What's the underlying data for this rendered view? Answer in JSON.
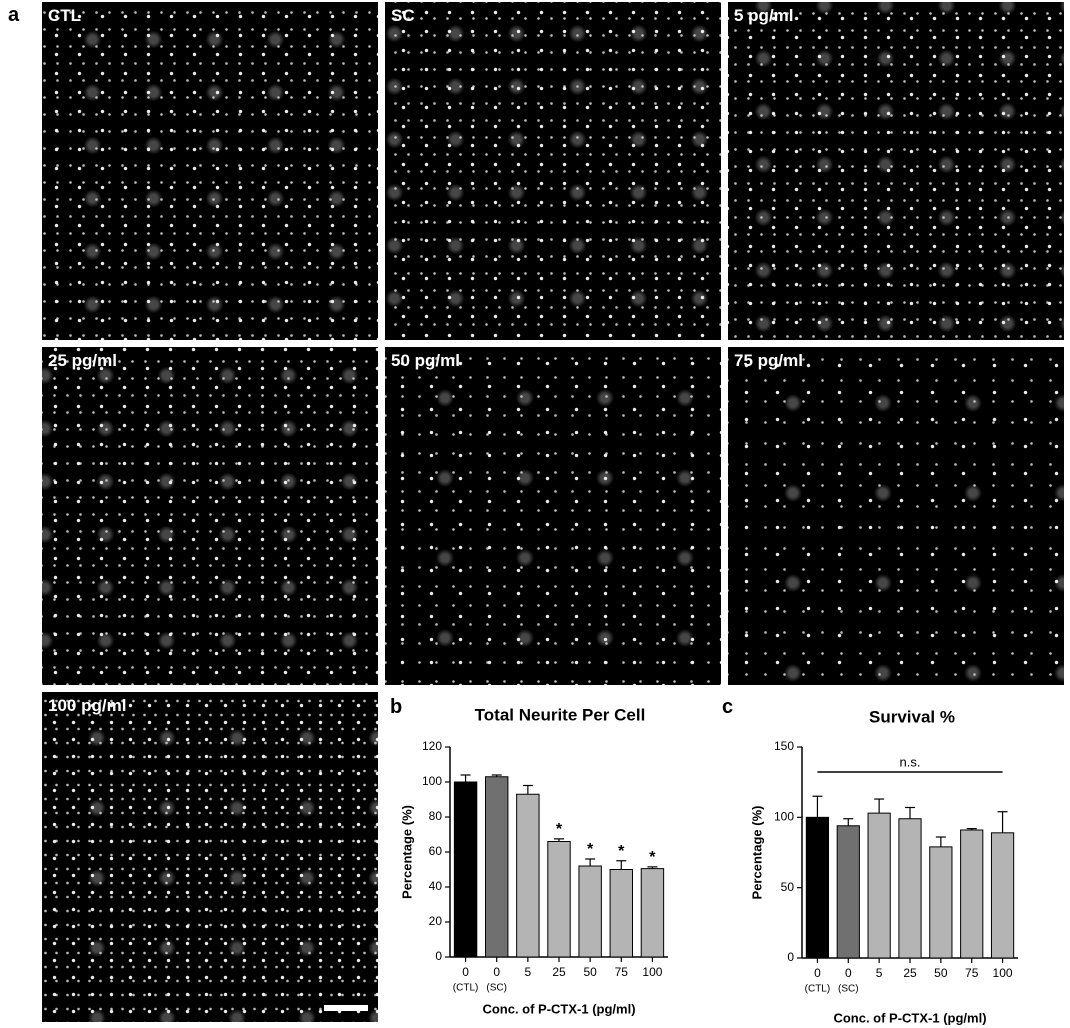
{
  "figure": {
    "panel_labels": [
      "a",
      "b",
      "c"
    ],
    "images": [
      {
        "label": "CTL"
      },
      {
        "label": "SC"
      },
      {
        "label": "5 pg/ml"
      },
      {
        "label": "25 pg/ml"
      },
      {
        "label": "50 pg/ml"
      },
      {
        "label": "75 pg/ml"
      },
      {
        "label": "100 pg/ml"
      }
    ]
  },
  "chart_data": [
    {
      "type": "bar",
      "title": "Total Neurite Per Cell",
      "y_label": "Percentage (%)",
      "x_label": "Conc. of P-CTX-1 (pg/ml)",
      "categories": [
        "0",
        "0",
        "5",
        "25",
        "50",
        "75",
        "100"
      ],
      "category_sublabels": [
        "(CTL)",
        "(SC)",
        null,
        null,
        null,
        null,
        null
      ],
      "values": [
        100,
        103,
        93,
        66,
        52,
        50,
        50.5
      ],
      "errors": [
        4,
        1,
        5,
        1.5,
        4,
        5,
        1
      ],
      "colors": [
        "#000000",
        "#707070",
        "#b4b4b4",
        "#b4b4b4",
        "#b4b4b4",
        "#b4b4b4",
        "#b4b4b4"
      ],
      "significance_marks": [
        null,
        null,
        null,
        "*",
        "*",
        "*",
        "*"
      ],
      "ylim": [
        0,
        120
      ],
      "yticks": [
        0,
        20,
        40,
        60,
        80,
        100,
        120
      ]
    },
    {
      "type": "bar",
      "title": "Survival %",
      "y_label": "Percentage (%)",
      "x_label": "Conc. of P-CTX-1 (pg/ml)",
      "categories": [
        "0",
        "0",
        "5",
        "25",
        "50",
        "75",
        "100"
      ],
      "category_sublabels": [
        "(CTL)",
        "(SC)",
        null,
        null,
        null,
        null,
        null
      ],
      "values": [
        100,
        94,
        103,
        99,
        79,
        91,
        89
      ],
      "errors": [
        15,
        5,
        10,
        8,
        7,
        1,
        15
      ],
      "colors": [
        "#000000",
        "#707070",
        "#b4b4b4",
        "#b4b4b4",
        "#b4b4b4",
        "#b4b4b4",
        "#b4b4b4"
      ],
      "annotation": "n.s.",
      "ylim": [
        0,
        150
      ],
      "yticks": [
        0,
        50,
        100,
        150
      ]
    }
  ]
}
